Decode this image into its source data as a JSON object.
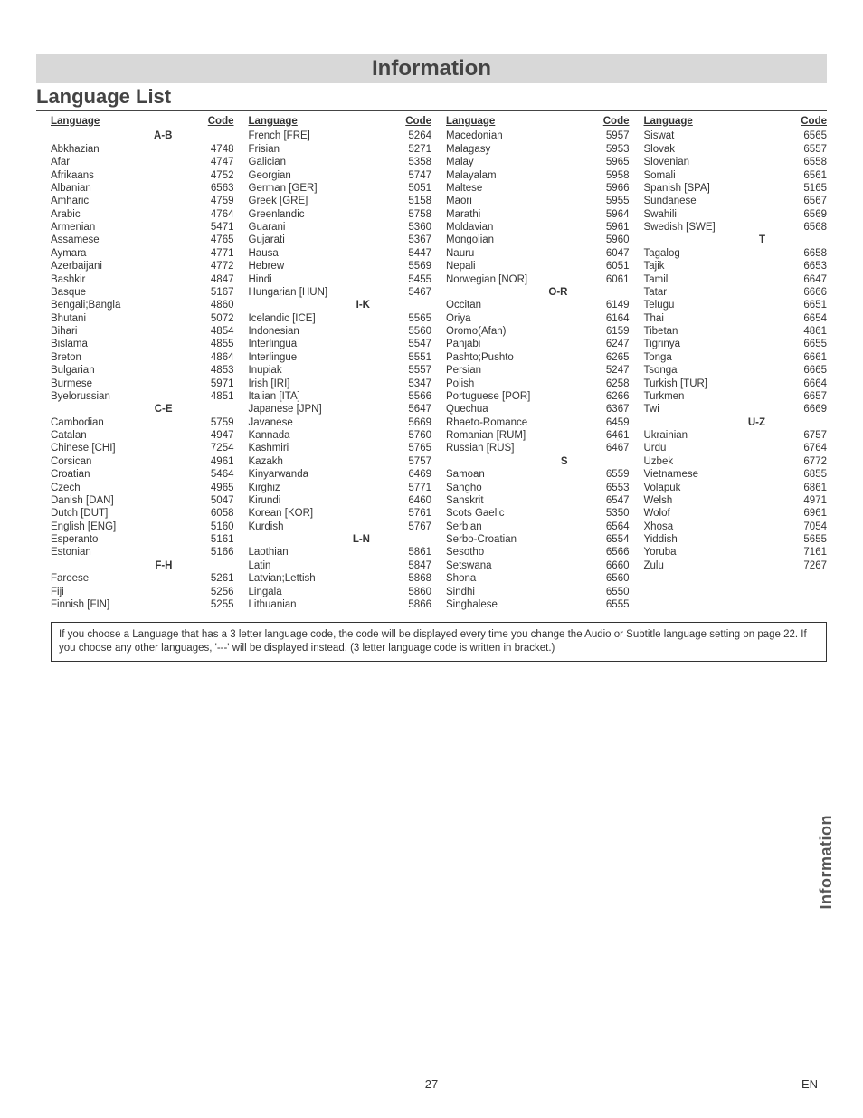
{
  "title": "Information",
  "subtitle": "Language List",
  "headers": {
    "language": "Language",
    "code": "Code"
  },
  "columns": [
    [
      {
        "heading": "A-B"
      },
      {
        "lang": "Abkhazian",
        "code": "4748"
      },
      {
        "lang": "Afar",
        "code": "4747"
      },
      {
        "lang": "Afrikaans",
        "code": "4752"
      },
      {
        "lang": "Albanian",
        "code": "6563"
      },
      {
        "lang": "Amharic",
        "code": "4759"
      },
      {
        "lang": "Arabic",
        "code": "4764"
      },
      {
        "lang": "Armenian",
        "code": "5471"
      },
      {
        "lang": "Assamese",
        "code": "4765"
      },
      {
        "lang": "Aymara",
        "code": "4771"
      },
      {
        "lang": "Azerbaijani",
        "code": "4772"
      },
      {
        "lang": "Bashkir",
        "code": "4847"
      },
      {
        "lang": "Basque",
        "code": "5167"
      },
      {
        "lang": "Bengali;Bangla",
        "code": "4860"
      },
      {
        "lang": "Bhutani",
        "code": "5072"
      },
      {
        "lang": "Bihari",
        "code": "4854"
      },
      {
        "lang": "Bislama",
        "code": "4855"
      },
      {
        "lang": "Breton",
        "code": "4864"
      },
      {
        "lang": "Bulgarian",
        "code": "4853"
      },
      {
        "lang": "Burmese",
        "code": "5971"
      },
      {
        "lang": "Byelorussian",
        "code": "4851"
      },
      {
        "heading": "C-E"
      },
      {
        "lang": "Cambodian",
        "code": "5759"
      },
      {
        "lang": "Catalan",
        "code": "4947"
      },
      {
        "lang": "Chinese [CHI]",
        "code": "7254"
      },
      {
        "lang": "Corsican",
        "code": "4961"
      },
      {
        "lang": "Croatian",
        "code": "5464"
      },
      {
        "lang": "Czech",
        "code": "4965"
      },
      {
        "lang": "Danish [DAN]",
        "code": "5047"
      },
      {
        "lang": "Dutch [DUT]",
        "code": "6058"
      },
      {
        "lang": "English [ENG]",
        "code": "5160"
      },
      {
        "lang": "Esperanto",
        "code": "5161"
      },
      {
        "lang": "Estonian",
        "code": "5166"
      },
      {
        "heading": "F-H"
      },
      {
        "lang": "Faroese",
        "code": "5261"
      },
      {
        "lang": "Fiji",
        "code": "5256"
      },
      {
        "lang": "Finnish [FIN]",
        "code": "5255"
      }
    ],
    [
      {
        "lang": "French [FRE]",
        "code": "5264"
      },
      {
        "lang": "Frisian",
        "code": "5271"
      },
      {
        "lang": "Galician",
        "code": "5358"
      },
      {
        "lang": "Georgian",
        "code": "5747"
      },
      {
        "lang": "German [GER]",
        "code": "5051"
      },
      {
        "lang": "Greek [GRE]",
        "code": "5158"
      },
      {
        "lang": "Greenlandic",
        "code": "5758"
      },
      {
        "lang": "Guarani",
        "code": "5360"
      },
      {
        "lang": "Gujarati",
        "code": "5367"
      },
      {
        "lang": "Hausa",
        "code": "5447"
      },
      {
        "lang": "Hebrew",
        "code": "5569"
      },
      {
        "lang": "Hindi",
        "code": "5455"
      },
      {
        "lang": "Hungarian [HUN]",
        "code": "5467"
      },
      {
        "heading": "I-K"
      },
      {
        "lang": "Icelandic [ICE]",
        "code": "5565"
      },
      {
        "lang": "Indonesian",
        "code": "5560"
      },
      {
        "lang": "Interlingua",
        "code": "5547"
      },
      {
        "lang": "Interlingue",
        "code": "5551"
      },
      {
        "lang": "Inupiak",
        "code": "5557"
      },
      {
        "lang": "Irish [IRI]",
        "code": "5347"
      },
      {
        "lang": "Italian [ITA]",
        "code": "5566"
      },
      {
        "lang": "Japanese [JPN]",
        "code": "5647"
      },
      {
        "lang": "Javanese",
        "code": "5669"
      },
      {
        "lang": "Kannada",
        "code": "5760"
      },
      {
        "lang": "Kashmiri",
        "code": "5765"
      },
      {
        "lang": "Kazakh",
        "code": "5757"
      },
      {
        "lang": "Kinyarwanda",
        "code": "6469"
      },
      {
        "lang": "Kirghiz",
        "code": "5771"
      },
      {
        "lang": "Kirundi",
        "code": "6460"
      },
      {
        "lang": "Korean [KOR]",
        "code": "5761"
      },
      {
        "lang": "Kurdish",
        "code": "5767"
      },
      {
        "heading": "L-N"
      },
      {
        "lang": "Laothian",
        "code": "5861"
      },
      {
        "lang": "Latin",
        "code": "5847"
      },
      {
        "lang": "Latvian;Lettish",
        "code": "5868"
      },
      {
        "lang": "Lingala",
        "code": "5860"
      },
      {
        "lang": "Lithuanian",
        "code": "5866"
      }
    ],
    [
      {
        "lang": "Macedonian",
        "code": "5957"
      },
      {
        "lang": "Malagasy",
        "code": "5953"
      },
      {
        "lang": "Malay",
        "code": "5965"
      },
      {
        "lang": "Malayalam",
        "code": "5958"
      },
      {
        "lang": "Maltese",
        "code": "5966"
      },
      {
        "lang": "Maori",
        "code": "5955"
      },
      {
        "lang": "Marathi",
        "code": "5964"
      },
      {
        "lang": "Moldavian",
        "code": "5961"
      },
      {
        "lang": "Mongolian",
        "code": "5960"
      },
      {
        "lang": "Nauru",
        "code": "6047"
      },
      {
        "lang": "Nepali",
        "code": "6051"
      },
      {
        "lang": "Norwegian [NOR]",
        "code": "6061"
      },
      {
        "heading": "O-R"
      },
      {
        "lang": "Occitan",
        "code": "6149"
      },
      {
        "lang": "Oriya",
        "code": "6164"
      },
      {
        "lang": "Oromo(Afan)",
        "code": "6159"
      },
      {
        "lang": "Panjabi",
        "code": "6247"
      },
      {
        "lang": "Pashto;Pushto",
        "code": "6265"
      },
      {
        "lang": "Persian",
        "code": "5247"
      },
      {
        "lang": "Polish",
        "code": "6258"
      },
      {
        "lang": "Portuguese [POR]",
        "code": "6266"
      },
      {
        "lang": "Quechua",
        "code": "6367"
      },
      {
        "lang": "Rhaeto-Romance",
        "code": "6459"
      },
      {
        "lang": "Romanian [RUM]",
        "code": "6461"
      },
      {
        "lang": "Russian [RUS]",
        "code": "6467"
      },
      {
        "heading": "S"
      },
      {
        "lang": "Samoan",
        "code": "6559"
      },
      {
        "lang": "Sangho",
        "code": "6553"
      },
      {
        "lang": "Sanskrit",
        "code": "6547"
      },
      {
        "lang": "Scots Gaelic",
        "code": "5350"
      },
      {
        "lang": "Serbian",
        "code": "6564"
      },
      {
        "lang": "Serbo-Croatian",
        "code": "6554"
      },
      {
        "lang": "Sesotho",
        "code": "6566"
      },
      {
        "lang": "Setswana",
        "code": "6660"
      },
      {
        "lang": "Shona",
        "code": "6560"
      },
      {
        "lang": "Sindhi",
        "code": "6550"
      },
      {
        "lang": "Singhalese",
        "code": "6555"
      }
    ],
    [
      {
        "lang": "Siswat",
        "code": "6565"
      },
      {
        "lang": "Slovak",
        "code": "6557"
      },
      {
        "lang": "Slovenian",
        "code": "6558"
      },
      {
        "lang": "Somali",
        "code": "6561"
      },
      {
        "lang": "Spanish [SPA]",
        "code": "5165"
      },
      {
        "lang": "Sundanese",
        "code": "6567"
      },
      {
        "lang": "Swahili",
        "code": "6569"
      },
      {
        "lang": "Swedish [SWE]",
        "code": "6568"
      },
      {
        "heading": "T"
      },
      {
        "lang": "Tagalog",
        "code": "6658"
      },
      {
        "lang": "Tajik",
        "code": "6653"
      },
      {
        "lang": "Tamil",
        "code": "6647"
      },
      {
        "lang": "Tatar",
        "code": "6666"
      },
      {
        "lang": "Telugu",
        "code": "6651"
      },
      {
        "lang": "Thai",
        "code": "6654"
      },
      {
        "lang": "Tibetan",
        "code": "4861"
      },
      {
        "lang": "Tigrinya",
        "code": "6655"
      },
      {
        "lang": "Tonga",
        "code": "6661"
      },
      {
        "lang": "Tsonga",
        "code": "6665"
      },
      {
        "lang": "Turkish [TUR]",
        "code": "6664"
      },
      {
        "lang": "Turkmen",
        "code": "6657"
      },
      {
        "lang": "Twi",
        "code": "6669"
      },
      {
        "heading": "U-Z"
      },
      {
        "lang": "Ukrainian",
        "code": "6757"
      },
      {
        "lang": "Urdu",
        "code": "6764"
      },
      {
        "lang": "Uzbek",
        "code": "6772"
      },
      {
        "lang": "Vietnamese",
        "code": "6855"
      },
      {
        "lang": "Volapuk",
        "code": "6861"
      },
      {
        "lang": "Welsh",
        "code": "4971"
      },
      {
        "lang": "Wolof",
        "code": "6961"
      },
      {
        "lang": "Xhosa",
        "code": "7054"
      },
      {
        "lang": "Yiddish",
        "code": "5655"
      },
      {
        "lang": "Yoruba",
        "code": "7161"
      },
      {
        "lang": "Zulu",
        "code": "7267"
      }
    ]
  ],
  "note": "If you choose a Language that has a 3 letter language code, the code will be displayed every time you change the Audio or Subtitle language setting on page 22. If you choose any other languages, '---' will be displayed instead. (3 letter language code is written in bracket.)",
  "side_tab": "Information",
  "page_number": "– 27 –",
  "lang_code": "EN"
}
